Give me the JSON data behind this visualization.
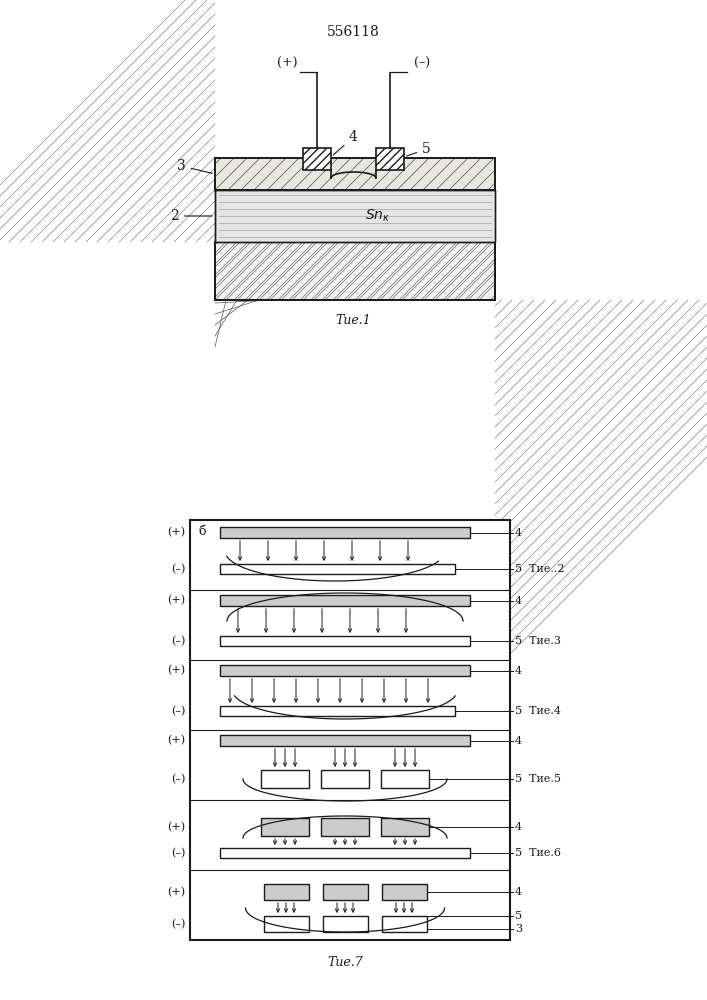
{
  "title": "556118",
  "lc": "#1a1a1a",
  "fig1_label": "Τие.1",
  "fig7_label": "Τие.7",
  "captions": [
    "Τие..2",
    "Τие.3",
    "Τие.4",
    "Τие.5",
    "Τие.6"
  ]
}
